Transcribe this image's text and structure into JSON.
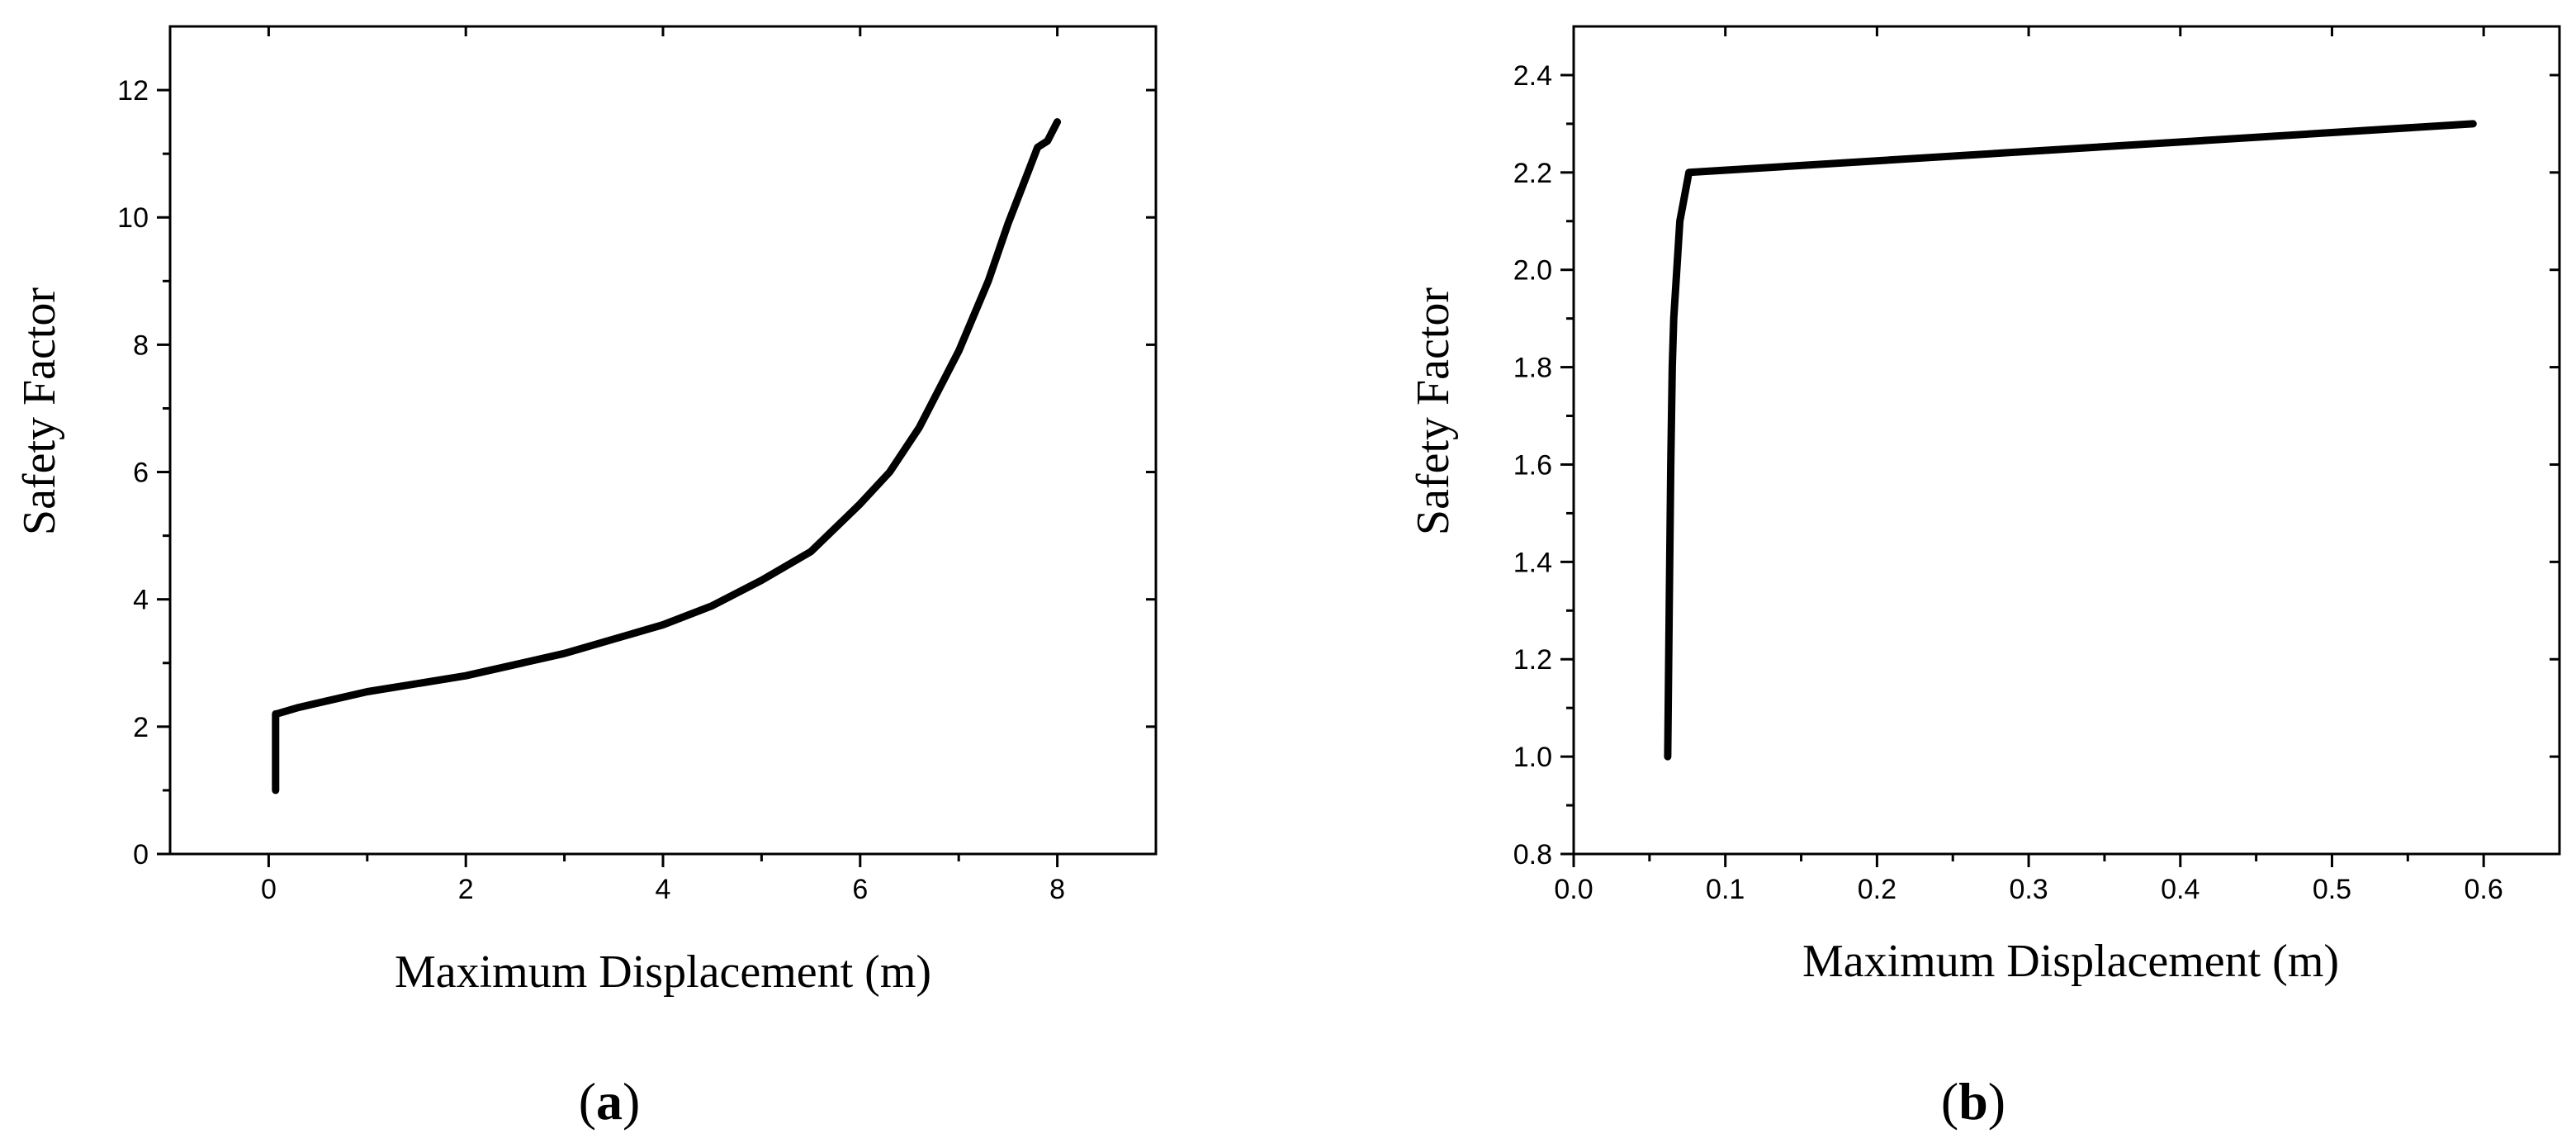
{
  "chart_data": [
    {
      "type": "line",
      "panel_label": "(a)",
      "panel_letter": "a",
      "xlabel": "Maximum Displacement (m)",
      "ylabel": "Safety Factor",
      "xlim": [
        -1,
        9
      ],
      "ylim": [
        0,
        13
      ],
      "x_ticks": [
        0,
        2,
        4,
        6,
        8
      ],
      "y_ticks": [
        0,
        2,
        4,
        6,
        8,
        10,
        12
      ],
      "x_tick_labels": [
        "0",
        "2",
        "4",
        "6",
        "8"
      ],
      "y_tick_labels": [
        "0",
        "2",
        "4",
        "6",
        "8",
        "10",
        "12"
      ],
      "line_color": "#000000",
      "series": [
        {
          "x": [
            0.07,
            0.07,
            0.08,
            0.3,
            1.0,
            2.0,
            3.0,
            4.0,
            4.5,
            5.0,
            5.5,
            6.0,
            6.3,
            6.6,
            7.0,
            7.3,
            7.5,
            7.7,
            7.8,
            7.9,
            7.95,
            8.0
          ],
          "y": [
            1.0,
            2.2,
            2.2,
            2.3,
            2.55,
            2.8,
            3.15,
            3.6,
            3.9,
            4.3,
            4.75,
            5.5,
            6.0,
            6.7,
            7.9,
            9.0,
            9.9,
            10.7,
            11.1,
            11.2,
            11.35,
            11.5
          ]
        }
      ]
    },
    {
      "type": "line",
      "panel_label": "(b)",
      "panel_letter": "b",
      "xlabel": "Maximum Displacement (m)",
      "ylabel": "Safety Factor",
      "xlim": [
        0.0,
        0.65
      ],
      "ylim": [
        0.8,
        2.5
      ],
      "x_ticks": [
        0.0,
        0.1,
        0.2,
        0.3,
        0.4,
        0.5,
        0.6
      ],
      "y_ticks": [
        0.8,
        1.0,
        1.2,
        1.4,
        1.6,
        1.8,
        2.0,
        2.2,
        2.4
      ],
      "x_tick_labels": [
        "0.0",
        "0.1",
        "0.2",
        "0.3",
        "0.4",
        "0.5",
        "0.6"
      ],
      "y_tick_labels": [
        "0.8",
        "1.0",
        "1.2",
        "1.4",
        "1.6",
        "1.8",
        "2.0",
        "2.2",
        "2.4"
      ],
      "line_color": "#000000",
      "series": [
        {
          "x": [
            0.062,
            0.063,
            0.064,
            0.065,
            0.066,
            0.068,
            0.07,
            0.073,
            0.076,
            0.593
          ],
          "y": [
            1.0,
            1.3,
            1.6,
            1.8,
            1.9,
            2.0,
            2.1,
            2.15,
            2.2,
            2.3
          ]
        }
      ]
    }
  ]
}
